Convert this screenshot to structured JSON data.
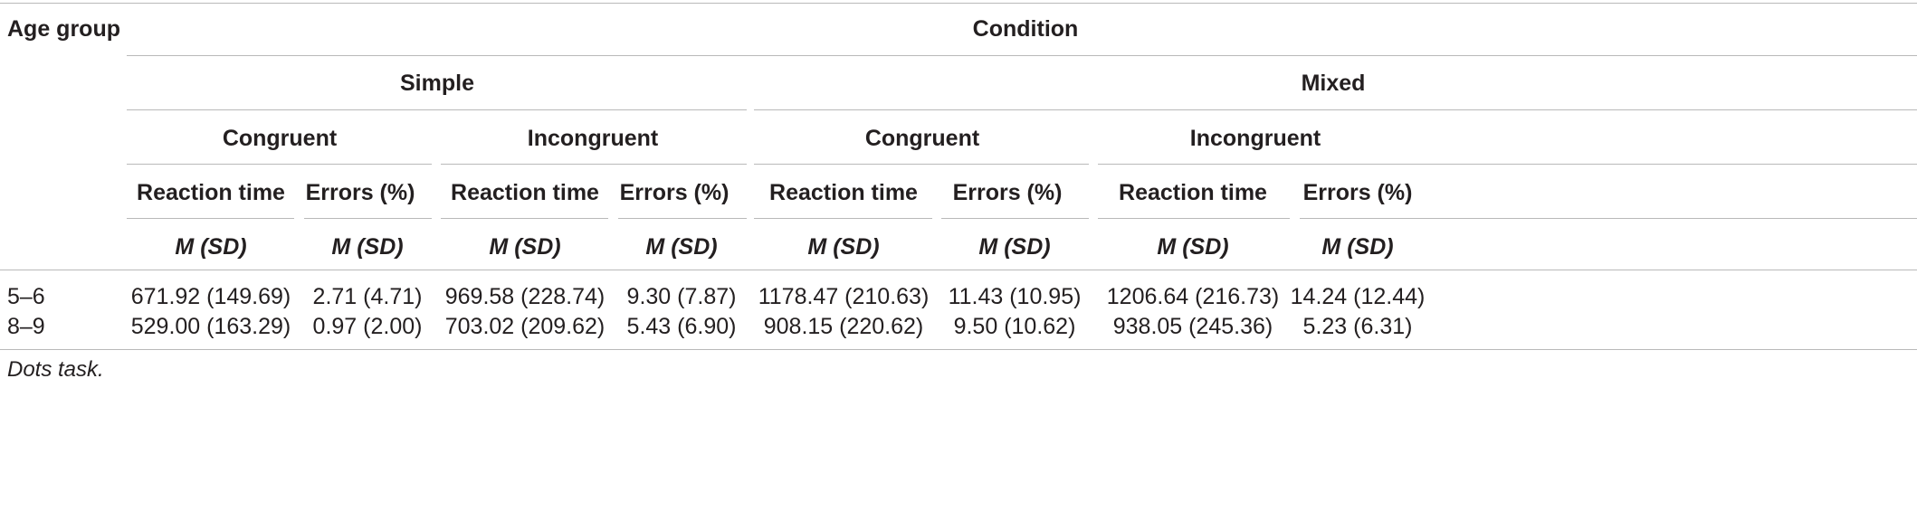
{
  "header": {
    "age_group": "Age group",
    "condition": "Condition",
    "simple": "Simple",
    "mixed": "Mixed",
    "congruent": "Congruent",
    "incongruent": "Incongruent",
    "reaction_time": "Reaction time",
    "errors": "Errors (%)",
    "msd": "M (SD)"
  },
  "rows": [
    {
      "age": "5–6",
      "values": [
        "671.92 (149.69)",
        "2.71 (4.71)",
        "969.58 (228.74)",
        "9.30 (7.87)",
        "1178.47 (210.63)",
        "11.43 (10.95)",
        "1206.64 (216.73)",
        "14.24 (12.44)"
      ]
    },
    {
      "age": "8–9",
      "values": [
        "529.00 (163.29)",
        "0.97 (2.00)",
        "703.02 (209.62)",
        "5.43 (6.90)",
        "908.15 (220.62)",
        "9.50 (10.62)",
        "938.05 (245.36)",
        "5.23 (6.31)"
      ]
    }
  ],
  "footnote": "Dots task."
}
